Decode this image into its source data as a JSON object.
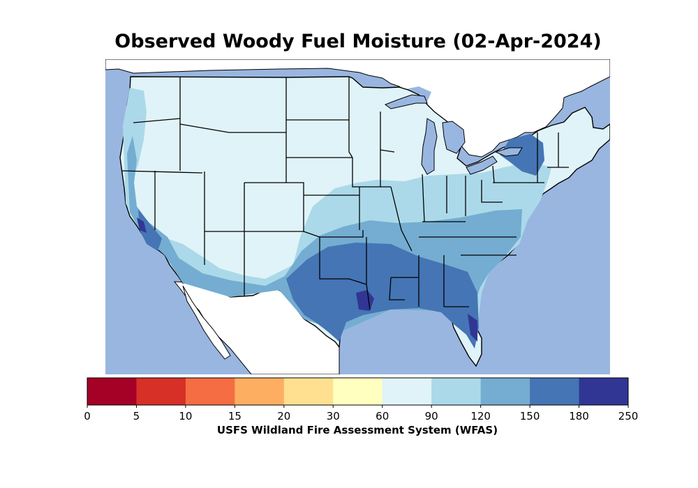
{
  "title": "Observed Woody Fuel Moisture (02-Apr-2024)",
  "colorbar": {
    "label": "USFS Wildland Fire Assessment System (WFAS)",
    "ticks": [
      "0",
      "5",
      "10",
      "15",
      "20",
      "30",
      "60",
      "90",
      "120",
      "150",
      "180",
      "250"
    ],
    "colors": [
      "#a50026",
      "#d73027",
      "#f46d43",
      "#fdae61",
      "#fee090",
      "#ffffbf",
      "#e0f3f8",
      "#abd9e9",
      "#74add1",
      "#4575b4",
      "#313695"
    ]
  },
  "map": {
    "ocean_color": "#99b6e0",
    "land_outside_color": "#ffffff",
    "border_color": "#000000"
  }
}
